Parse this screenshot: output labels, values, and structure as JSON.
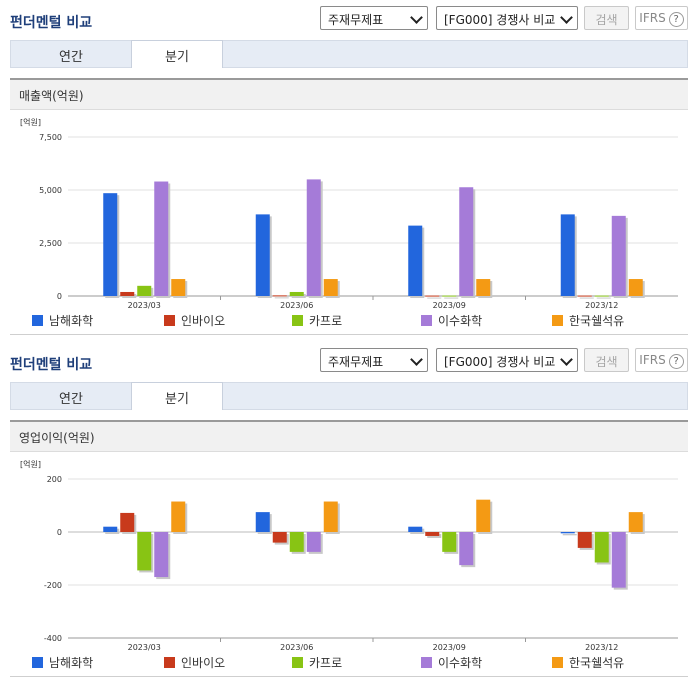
{
  "panels": [
    {
      "title": "펀더멘털 비교",
      "select_type": "주재무제표",
      "select_compare": "[FG000] 경쟁사 비교",
      "search_label": "검색",
      "ifrs_label": "IFRS",
      "help_icon": "question-circle-icon",
      "tabs": [
        {
          "label": "연간"
        },
        {
          "label": "분기"
        }
      ],
      "active_tab": 1,
      "section_title": "매출액(억원)",
      "chart_data": {
        "type": "bar",
        "unit_label": "[억원]",
        "categories": [
          "2023/03",
          "2023/06",
          "2023/09",
          "2023/12"
        ],
        "ylim": [
          0,
          7500
        ],
        "yticks": [
          0,
          2500,
          5000,
          7500
        ],
        "ytick_labels": [
          "0",
          "2,500",
          "5,000",
          "7,500"
        ],
        "grid": true,
        "legend_position": "bottom",
        "series": [
          {
            "name": "남해화학",
            "color": "#2266dd",
            "values": [
              4850,
              3850,
              3320,
              3850
            ]
          },
          {
            "name": "인바이오",
            "color": "#c83a1c",
            "values": [
              190,
              30,
              20,
              20
            ]
          },
          {
            "name": "카프로",
            "color": "#88c414",
            "values": [
              480,
              190,
              20,
              20
            ]
          },
          {
            "name": "이수화학",
            "color": "#a57bd8",
            "values": [
              5400,
              5500,
              5130,
              3780
            ]
          },
          {
            "name": "한국쉘석유",
            "color": "#f49a14",
            "values": [
              800,
              800,
              800,
              800
            ]
          }
        ]
      }
    },
    {
      "title": "펀더멘털 비교",
      "select_type": "주재무제표",
      "select_compare": "[FG000] 경쟁사 비교",
      "search_label": "검색",
      "ifrs_label": "IFRS",
      "help_icon": "question-circle-icon",
      "tabs": [
        {
          "label": "연간"
        },
        {
          "label": "분기"
        }
      ],
      "active_tab": 1,
      "section_title": "영업이익(억원)",
      "chart_data": {
        "type": "bar",
        "unit_label": "[억원]",
        "categories": [
          "2023/03",
          "2023/06",
          "2023/09",
          "2023/12"
        ],
        "ylim": [
          -400,
          200
        ],
        "yticks": [
          -400,
          -200,
          0,
          200
        ],
        "ytick_labels": [
          "-400",
          "-200",
          "0",
          "200"
        ],
        "grid": true,
        "legend_position": "bottom",
        "series": [
          {
            "name": "남해화학",
            "color": "#2266dd",
            "values": [
              20,
              75,
              20,
              -5
            ]
          },
          {
            "name": "인바이오",
            "color": "#c83a1c",
            "values": [
              72,
              -40,
              -15,
              -60
            ]
          },
          {
            "name": "카프로",
            "color": "#88c414",
            "values": [
              -145,
              -75,
              -75,
              -115
            ]
          },
          {
            "name": "이수화학",
            "color": "#a57bd8",
            "values": [
              -170,
              -75,
              -125,
              -210
            ]
          },
          {
            "name": "한국쉘석유",
            "color": "#f49a14",
            "values": [
              115,
              115,
              122,
              75
            ]
          }
        ]
      }
    }
  ]
}
